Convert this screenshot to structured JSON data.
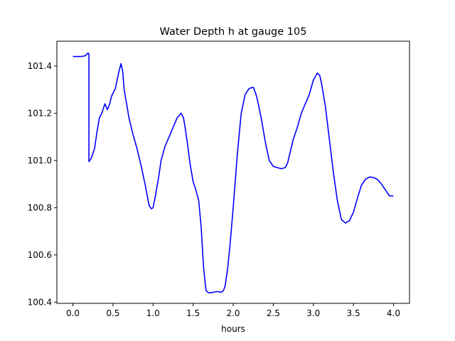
{
  "chart_data": {
    "type": "line",
    "title": "Water Depth h at gauge 105",
    "xlabel": "hours",
    "ylabel": "",
    "xlim": [
      -0.2,
      4.2
    ],
    "ylim": [
      100.395,
      101.505
    ],
    "x_ticks": [
      0.0,
      0.5,
      1.0,
      1.5,
      2.0,
      2.5,
      3.0,
      3.5,
      4.0
    ],
    "x_tick_labels": [
      "0.0",
      "0.5",
      "1.0",
      "1.5",
      "2.0",
      "2.5",
      "3.0",
      "3.5",
      "4.0"
    ],
    "y_ticks": [
      100.4,
      100.6,
      100.8,
      101.0,
      101.2,
      101.4
    ],
    "y_tick_labels": [
      "100.4",
      "100.6",
      "100.8",
      "101.0",
      "101.2",
      "101.4"
    ],
    "grid": false,
    "series": [
      {
        "color": "#0000ff",
        "x": [
          0.0,
          0.1,
          0.15,
          0.19,
          0.2,
          0.2,
          0.23,
          0.27,
          0.3,
          0.33,
          0.36,
          0.4,
          0.43,
          0.46,
          0.48,
          0.5,
          0.53,
          0.57,
          0.6,
          0.62,
          0.64,
          0.66,
          0.68,
          0.7,
          0.75,
          0.8,
          0.85,
          0.9,
          0.95,
          0.98,
          1.0,
          1.03,
          1.07,
          1.1,
          1.15,
          1.2,
          1.25,
          1.3,
          1.35,
          1.38,
          1.4,
          1.43,
          1.46,
          1.5,
          1.53,
          1.57,
          1.6,
          1.63,
          1.66,
          1.69,
          1.72,
          1.75,
          1.8,
          1.85,
          1.88,
          1.9,
          1.93,
          1.96,
          2.0,
          2.05,
          2.1,
          2.15,
          2.2,
          2.25,
          2.28,
          2.3,
          2.35,
          2.4,
          2.45,
          2.5,
          2.55,
          2.6,
          2.65,
          2.68,
          2.7,
          2.75,
          2.8,
          2.85,
          2.9,
          2.95,
          3.0,
          3.05,
          3.08,
          3.1,
          3.15,
          3.2,
          3.25,
          3.3,
          3.35,
          3.4,
          3.45,
          3.5,
          3.55,
          3.6,
          3.65,
          3.7,
          3.75,
          3.8,
          3.85,
          3.9,
          3.95,
          4.0
        ],
        "values": [
          101.44,
          101.44,
          101.443,
          101.455,
          101.45,
          100.995,
          101.01,
          101.05,
          101.12,
          101.18,
          101.2,
          101.24,
          101.215,
          101.24,
          101.27,
          101.285,
          101.305,
          101.37,
          101.41,
          101.38,
          101.3,
          101.26,
          101.22,
          101.18,
          101.11,
          101.05,
          100.98,
          100.9,
          100.81,
          100.795,
          100.8,
          100.85,
          100.93,
          101.0,
          101.06,
          101.1,
          101.14,
          101.18,
          101.2,
          101.18,
          101.14,
          101.07,
          100.99,
          100.91,
          100.88,
          100.83,
          100.72,
          100.55,
          100.45,
          100.44,
          100.44,
          100.442,
          100.445,
          100.442,
          100.45,
          100.47,
          100.54,
          100.64,
          100.8,
          101.02,
          101.2,
          101.28,
          101.305,
          101.31,
          101.285,
          101.26,
          101.18,
          101.08,
          101.0,
          100.975,
          100.97,
          100.965,
          100.97,
          100.99,
          101.02,
          101.09,
          101.14,
          101.2,
          101.24,
          101.28,
          101.34,
          101.37,
          101.36,
          101.33,
          101.23,
          101.09,
          100.95,
          100.83,
          100.75,
          100.735,
          100.745,
          100.78,
          100.84,
          100.895,
          100.92,
          100.93,
          100.928,
          100.92,
          100.9,
          100.875,
          100.85,
          100.85
        ]
      }
    ]
  }
}
